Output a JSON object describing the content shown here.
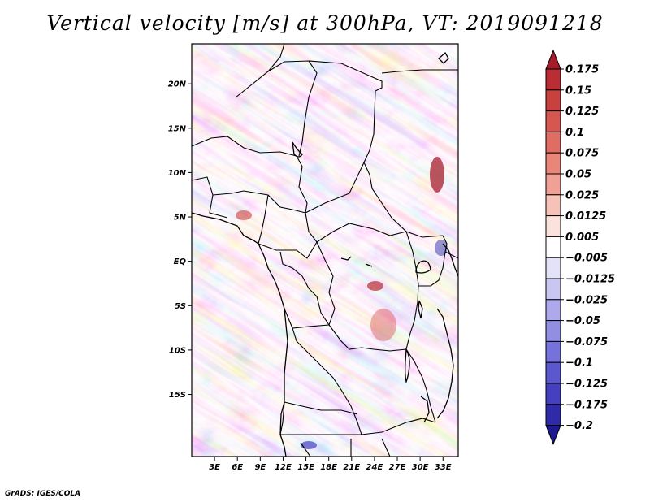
{
  "chart_data": {
    "type": "heatmap",
    "title": "Vertical velocity [m/s] at 300hPa, VT: 2019091218",
    "variable": "Vertical velocity",
    "units": "m/s",
    "level": "300hPa",
    "valid_time": "2019091218",
    "x_range_lon": [
      0,
      35
    ],
    "y_range_lat": [
      -22,
      24.5
    ],
    "x_ticks": [
      {
        "value": 3,
        "label": "3E"
      },
      {
        "value": 6,
        "label": "6E"
      },
      {
        "value": 9,
        "label": "9E"
      },
      {
        "value": 12,
        "label": "12E"
      },
      {
        "value": 15,
        "label": "15E"
      },
      {
        "value": 18,
        "label": "18E"
      },
      {
        "value": 21,
        "label": "21E"
      },
      {
        "value": 24,
        "label": "24E"
      },
      {
        "value": 27,
        "label": "27E"
      },
      {
        "value": 30,
        "label": "30E"
      },
      {
        "value": 33,
        "label": "33E"
      }
    ],
    "y_ticks": [
      {
        "value": 20,
        "label": "20N"
      },
      {
        "value": 15,
        "label": "15N"
      },
      {
        "value": 10,
        "label": "10N"
      },
      {
        "value": 5,
        "label": "5N"
      },
      {
        "value": 0,
        "label": "EQ"
      },
      {
        "value": -5,
        "label": "5S"
      },
      {
        "value": -10,
        "label": "10S"
      },
      {
        "value": -15,
        "label": "15S"
      }
    ],
    "colorbar": {
      "labels": [
        "0.175",
        "0.15",
        "0.125",
        "0.1",
        "0.075",
        "0.05",
        "0.025",
        "0.0125",
        "0.005",
        "−0.005",
        "−0.0125",
        "−0.025",
        "−0.05",
        "−0.075",
        "−0.1",
        "−0.125",
        "−0.175",
        "−0.2"
      ],
      "colors": [
        "#a51c2a",
        "#b92d35",
        "#c9413f",
        "#d6574f",
        "#e06d63",
        "#e98679",
        "#f0a094",
        "#f6c2b8",
        "#fbe2dd",
        "#ffffff",
        "#e4e2f8",
        "#cac6f2",
        "#ada9ec",
        "#918ee4",
        "#7672db",
        "#5b57cf",
        "#4440c0",
        "#2f2ba8",
        "#1d1990"
      ]
    }
  },
  "credit": "GrADS: IGES/COLA"
}
